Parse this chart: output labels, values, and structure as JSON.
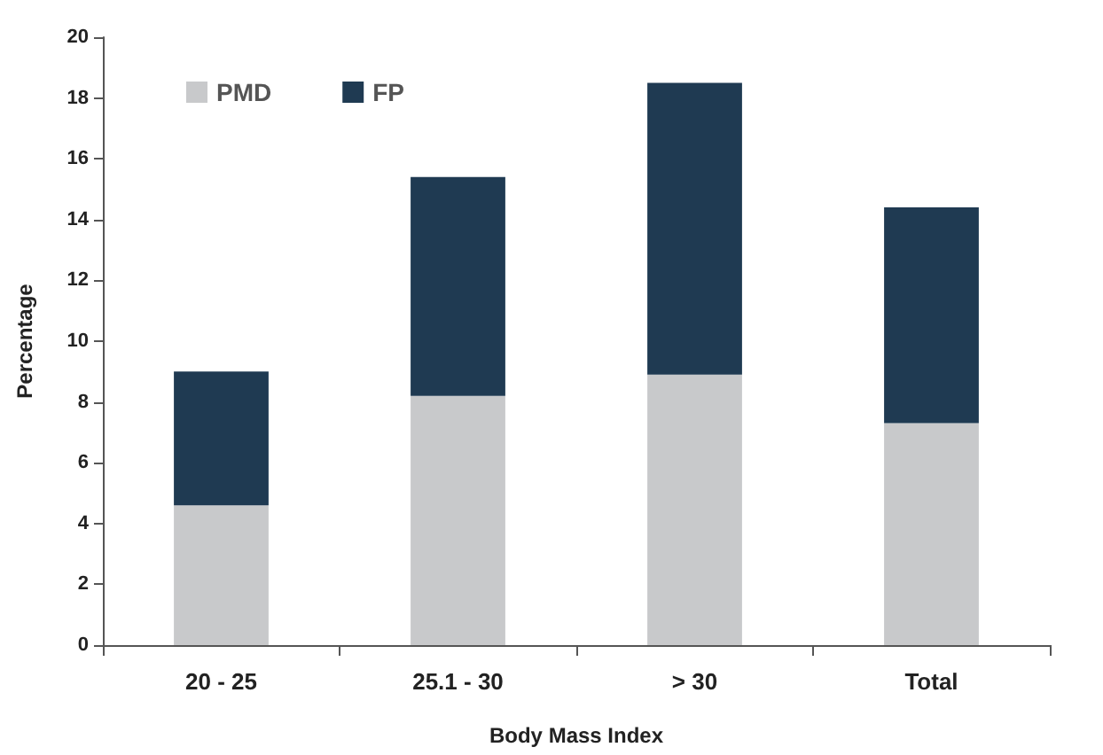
{
  "chart_data": {
    "type": "bar",
    "stacked": true,
    "xlabel": "Body Mass Index",
    "ylabel": "Percentage",
    "categories": [
      "20 - 25",
      "25.1 - 30",
      "> 30",
      "Total"
    ],
    "series": [
      {
        "name": "PMD",
        "color": "#c8c9cb",
        "values": [
          4.6,
          8.2,
          8.9,
          7.3
        ]
      },
      {
        "name": "FP",
        "color": "#1f3a52",
        "values": [
          4.4,
          7.2,
          9.6,
          7.1
        ]
      }
    ],
    "ylim": [
      0,
      20
    ],
    "yticks": [
      0,
      2,
      4,
      6,
      8,
      10,
      12,
      14,
      16,
      18,
      20
    ],
    "grid": false,
    "legend": "top left"
  }
}
